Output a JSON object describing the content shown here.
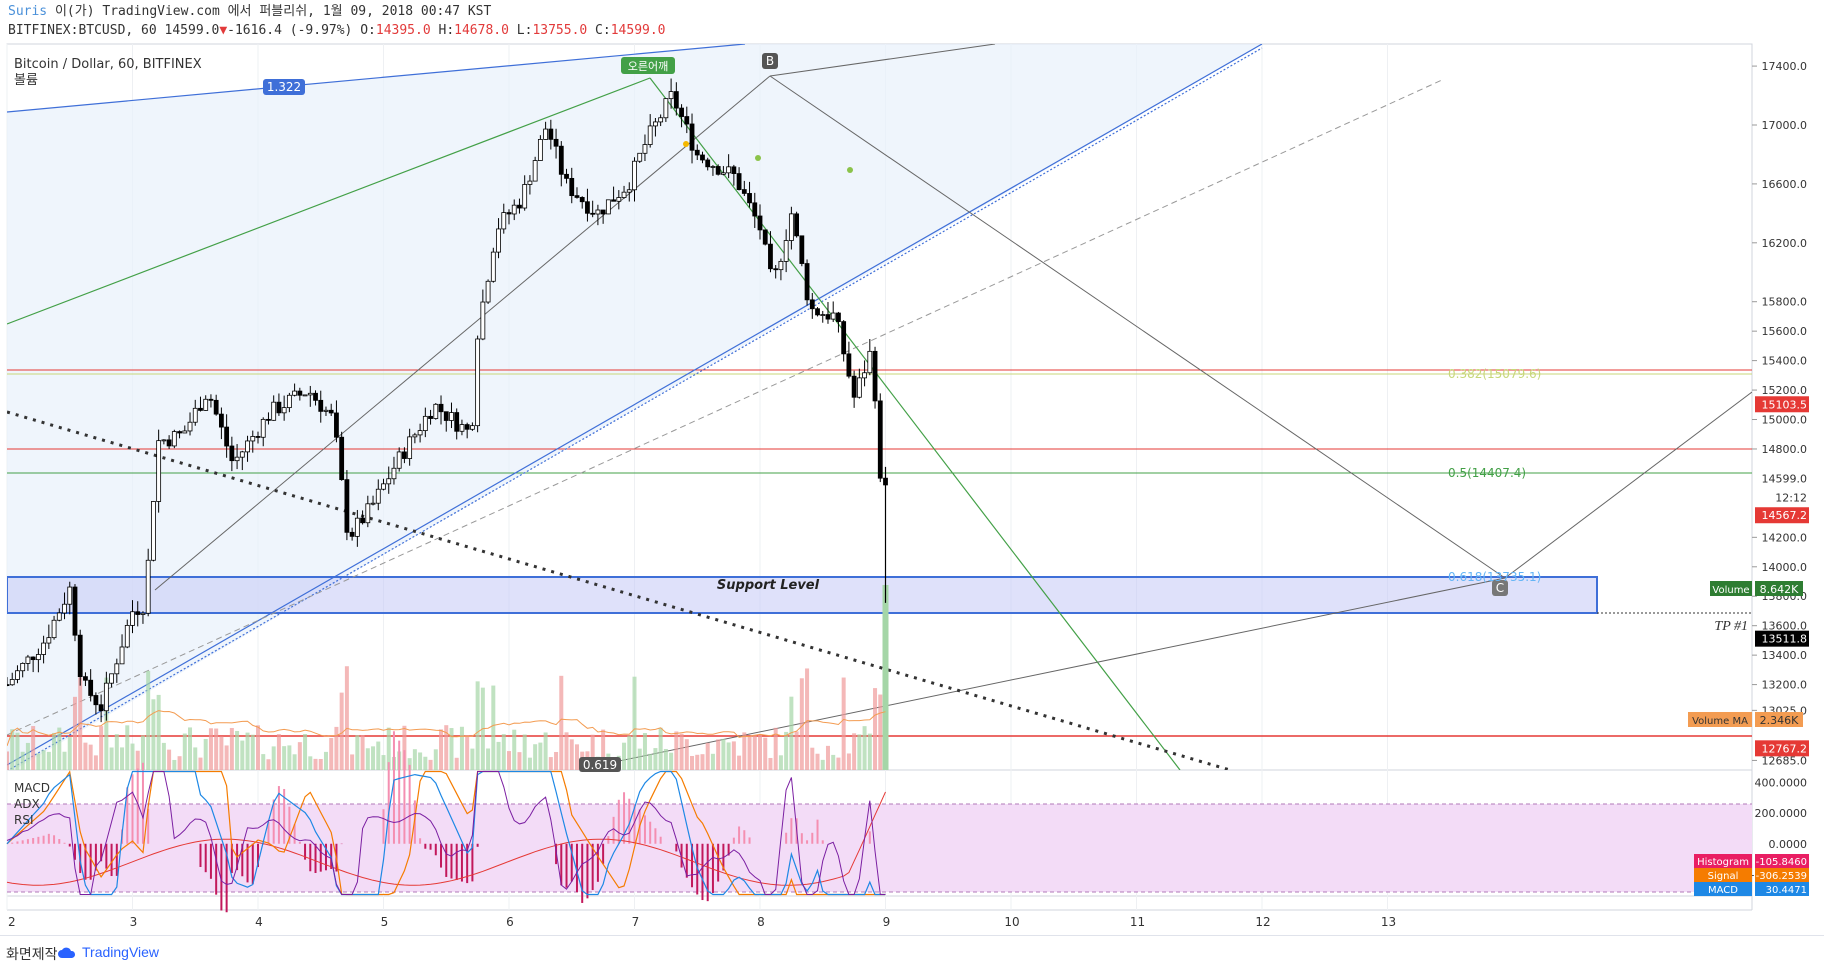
{
  "header": {
    "author": "Suris",
    "line1": " 이(가) TradingView.com 에서 퍼블리쉬, 1월 09, 2018 00:47 KST",
    "symbol": "BITFINEX:BTCUSD, 60 14599.0",
    "change": "-1616.4 (-9.97%)",
    "o_label": " O:",
    "o": "14395.0",
    "h_label": " H:",
    "h": "14678.0",
    "l_label": " L:",
    "l": "13755.0",
    "c_label": " C:",
    "c": "14599.0"
  },
  "legend": {
    "title": "Bitcoin / Dollar, 60, BITFINEX",
    "sub": "볼륨"
  },
  "annotations": {
    "ratio_1322": "1.322",
    "ratio_0619": "0.619",
    "tag_rising": "오른어깨",
    "point_b": "B",
    "point_c": "C",
    "support": "Support Level",
    "tp": "TP #1",
    "fib_0382": "0.382(15079.6)",
    "fib_05": "0.5(14407.4)",
    "fib_0618": "0.618(13735.1)"
  },
  "colors": {
    "up": "#ffffff",
    "down": "#000000",
    "red": "#e53935",
    "green": "#43a047",
    "blue": "#3f6fd8",
    "vol_up": "#a5d6a7",
    "vol_down": "#ef9a9a"
  },
  "price_axis": {
    "ticks": [
      "17400.0",
      "17000.0",
      "16600.0",
      "16200.0",
      "15800.0",
      "15600.0",
      "15400.0",
      "15200.0",
      "15000.0",
      "14800.0",
      "14200.0",
      "14000.0",
      "13800.0",
      "13600.0",
      "13400.0",
      "13200.0",
      "13025.0",
      "12685.0"
    ],
    "tick_values": [
      17400,
      17000,
      16600,
      16200,
      15800,
      15600,
      15400,
      15200,
      15000,
      14800,
      14200,
      14000,
      13800,
      13600,
      13400,
      13200,
      13025,
      12685
    ],
    "badges": [
      {
        "text": "15103.5",
        "value": 15103.5,
        "color": "#e53935"
      },
      {
        "text": "14599.0",
        "value": 14599.0,
        "color": "#ffffff"
      },
      {
        "text": "12:12",
        "value": 14470,
        "color": "#ffffff"
      },
      {
        "text": "14567.2",
        "value": 14350,
        "color": "#e53935"
      },
      {
        "text": "13511.8",
        "value": 13511.8,
        "color": "#000000"
      },
      {
        "text": "12767.2",
        "value": 12767.2,
        "color": "#e53935"
      }
    ],
    "volume_label": "Volume",
    "volume_value": "8.642K",
    "volma_label": "Volume MA",
    "volma_value": "2.346K"
  },
  "indicator_axis": {
    "ticks": [
      "400.0000",
      "200.0000",
      "0.0000",
      "-200.0000"
    ],
    "tick_values": [
      400,
      200,
      0,
      -200
    ],
    "labels": [
      "MACD",
      "ADX",
      "RSI"
    ],
    "badges": [
      {
        "label": "Histogram",
        "value": "-105.8460",
        "color": "#e91e63"
      },
      {
        "label": "Signal",
        "value": "-306.2539",
        "color": "#f57c00"
      },
      {
        "label": "MACD",
        "value": "30.4471",
        "color": "#1e88e5"
      }
    ]
  },
  "time_axis": {
    "ticks": [
      "2",
      "3",
      "4",
      "5",
      "6",
      "7",
      "8",
      "9",
      "10",
      "11",
      "12",
      "13"
    ]
  },
  "chart_data": {
    "type": "candlestick",
    "symbol": "BTCUSD",
    "interval": "60",
    "ylim": [
      12620,
      17550
    ],
    "x_ticks": [
      "2",
      "3",
      "4",
      "5",
      "6",
      "7",
      "8",
      "9",
      "10",
      "11",
      "12",
      "13"
    ],
    "horizontal_levels": [
      15103.5,
      15079.6,
      14599.0,
      14407.4,
      13735.1,
      12767.2
    ],
    "support_zone": [
      13511.8,
      13760
    ],
    "key_points": {
      "B_high": 17320,
      "close": 14599.0,
      "low": 13755.0,
      "high_day": 14678.0,
      "open_day": 14395.0
    },
    "price_path": [
      {
        "day": 2.0,
        "price": 13200
      },
      {
        "day": 2.3,
        "price": 13500
      },
      {
        "day": 2.5,
        "price": 13850
      },
      {
        "day": 2.6,
        "price": 13200
      },
      {
        "day": 2.75,
        "price": 13050
      },
      {
        "day": 3.0,
        "price": 13700
      },
      {
        "day": 3.1,
        "price": 13750
      },
      {
        "day": 3.2,
        "price": 14850
      },
      {
        "day": 3.4,
        "price": 14900
      },
      {
        "day": 3.6,
        "price": 15200
      },
      {
        "day": 3.8,
        "price": 14700
      },
      {
        "day": 4.1,
        "price": 15050
      },
      {
        "day": 4.4,
        "price": 15200
      },
      {
        "day": 4.6,
        "price": 15000
      },
      {
        "day": 4.72,
        "price": 14200
      },
      {
        "day": 4.9,
        "price": 14400
      },
      {
        "day": 5.1,
        "price": 14700
      },
      {
        "day": 5.4,
        "price": 15100
      },
      {
        "day": 5.7,
        "price": 14900
      },
      {
        "day": 5.75,
        "price": 15600
      },
      {
        "day": 5.9,
        "price": 16300
      },
      {
        "day": 6.1,
        "price": 16500
      },
      {
        "day": 6.3,
        "price": 17000
      },
      {
        "day": 6.45,
        "price": 16600
      },
      {
        "day": 6.7,
        "price": 16400
      },
      {
        "day": 6.95,
        "price": 16600
      },
      {
        "day": 7.1,
        "price": 16900
      },
      {
        "day": 7.3,
        "price": 17200
      },
      {
        "day": 7.5,
        "price": 16800
      },
      {
        "day": 7.8,
        "price": 16650
      },
      {
        "day": 8.0,
        "price": 16300
      },
      {
        "day": 8.1,
        "price": 15900
      },
      {
        "day": 8.25,
        "price": 16400
      },
      {
        "day": 8.4,
        "price": 15750
      },
      {
        "day": 8.6,
        "price": 15700
      },
      {
        "day": 8.75,
        "price": 15150
      },
      {
        "day": 8.9,
        "price": 15500
      },
      {
        "day": 8.95,
        "price": 14550
      },
      {
        "day": 9.0,
        "price": 14599
      }
    ],
    "indicators": [
      "MACD",
      "ADX",
      "RSI"
    ],
    "indicator_ylim": [
      -340,
      480
    ],
    "macd_last": {
      "histogram": -105.846,
      "signal": -306.2539,
      "macd": 30.4471
    }
  }
}
